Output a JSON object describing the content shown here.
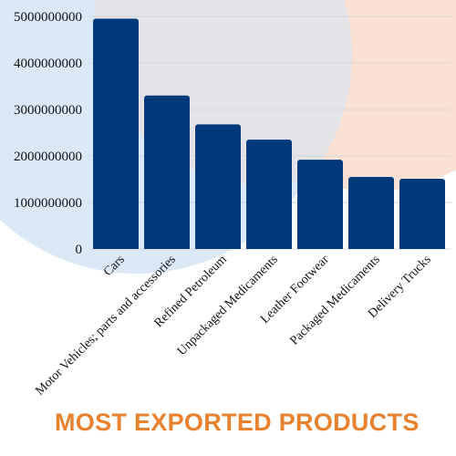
{
  "chart_data": {
    "type": "bar",
    "title": "MOST EXPORTED PRODUCTS",
    "xlabel": "",
    "ylabel": "",
    "categories": [
      "Cars",
      "Motor Vehicles; parts and accessories",
      "Refined Petroleum",
      "Unpackaged Medicaments",
      "Leather Footwear",
      "Packaged Medicaments",
      "Delivery Trucks"
    ],
    "values": [
      4950000000,
      3300000000,
      2680000000,
      2350000000,
      1920000000,
      1550000000,
      1510000000
    ],
    "ylim": [
      0,
      5000000000
    ],
    "yticks": [
      "0",
      "1000000000",
      "2000000000",
      "3000000000",
      "4000000000",
      "5000000000"
    ],
    "grid": true,
    "legend": "none"
  },
  "colors": {
    "bar": "#003a7a",
    "title": "#e8822e",
    "grid": "#d9d9d9",
    "bg_blue": "#dbe8f6",
    "bg_peach": "#fbe1d3",
    "bg_gray": "#e3e3e8"
  }
}
